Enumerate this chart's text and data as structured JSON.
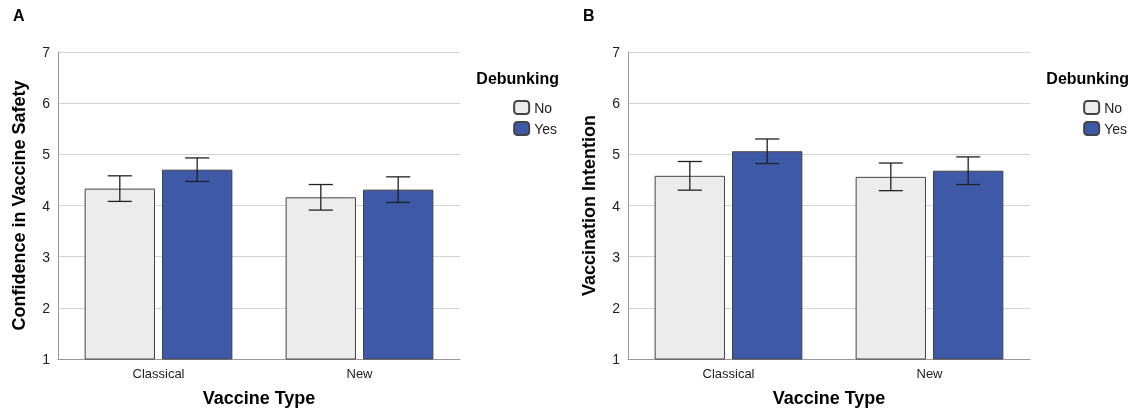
{
  "chart_data": [
    {
      "type": "bar",
      "title": "A",
      "xlabel": "Vaccine Type",
      "ylabel": "Confidence in Vaccine Safety",
      "legend_title": "Debunking",
      "categories": [
        "Classical",
        "New"
      ],
      "ylim": [
        1,
        7
      ],
      "yticks": [
        1,
        2,
        3,
        4,
        5,
        6,
        7
      ],
      "grid": "y",
      "legend": "right",
      "series": [
        {
          "name": "No",
          "color": "#ececec",
          "values": [
            4.33,
            4.16
          ],
          "errors": [
            0.25,
            0.25
          ]
        },
        {
          "name": "Yes",
          "color": "#3d59a8",
          "values": [
            4.7,
            4.31
          ],
          "errors": [
            0.23,
            0.25
          ]
        }
      ]
    },
    {
      "type": "bar",
      "title": "B",
      "xlabel": "Vaccine Type",
      "ylabel": "Vaccination Intention",
      "legend_title": "Debunking",
      "categories": [
        "Classical",
        "New"
      ],
      "ylim": [
        1,
        7
      ],
      "yticks": [
        1,
        2,
        3,
        4,
        5,
        6,
        7
      ],
      "grid": "y",
      "legend": "right",
      "series": [
        {
          "name": "No",
          "color": "#ececec",
          "values": [
            4.58,
            4.56
          ],
          "errors": [
            0.28,
            0.27
          ]
        },
        {
          "name": "Yes",
          "color": "#3d59a8",
          "values": [
            5.06,
            4.68
          ],
          "errors": [
            0.24,
            0.27
          ]
        }
      ]
    }
  ]
}
